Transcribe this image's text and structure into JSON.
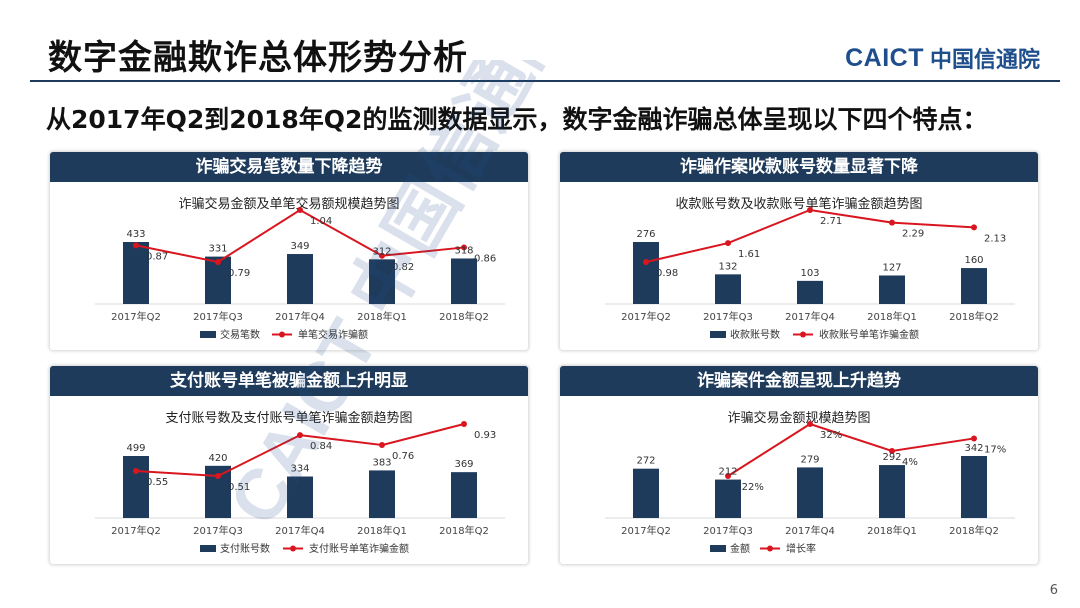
{
  "header": {
    "title": "数字金融欺诈总体形势分析",
    "logo_latin": "CAICT",
    "logo_cn": "中国信通院"
  },
  "subtitle": "从2017年Q2到2018年Q2的监测数据显示，数字金融诈骗总体呈现以下四个特点：",
  "watermark": "CAICT 中国信通院",
  "page_number": "6",
  "colors": {
    "bar": "#1f3b5c",
    "line": "#d9161f",
    "header": "#1f3b5c"
  },
  "panels": [
    {
      "header": "诈骗交易笔数量下降趋势"
    },
    {
      "header": "诈骗作案收款账号数量显著下降"
    },
    {
      "header": "支付账号单笔被骗金额上升明显"
    },
    {
      "header": "诈骗案件金额呈现上升趋势"
    }
  ],
  "chart_data": [
    {
      "type": "bar",
      "title": "诈骗交易金额及单笔交易额规模趋势图",
      "categories": [
        "2017年Q2",
        "2017年Q3",
        "2017年Q4",
        "2018年Q1",
        "2018年Q2"
      ],
      "series": [
        {
          "name": "交易笔数",
          "type": "bar",
          "values": [
            433,
            331,
            349,
            312,
            318
          ]
        },
        {
          "name": "单笔交易诈骗额",
          "type": "line",
          "values": [
            0.87,
            0.79,
            1.04,
            0.82,
            0.86
          ]
        }
      ],
      "legend": "bottom",
      "grid": false
    },
    {
      "type": "bar",
      "title": "收款账号数及收款账号单笔诈骗金额趋势图",
      "categories": [
        "2017年Q2",
        "2017年Q3",
        "2017年Q4",
        "2018年Q1",
        "2018年Q2"
      ],
      "series": [
        {
          "name": "收款账号数",
          "type": "bar",
          "values": [
            276,
            132,
            103,
            127,
            160
          ]
        },
        {
          "name": "收款账号单笔诈骗金额",
          "type": "line",
          "values": [
            0.98,
            1.61,
            2.71,
            2.29,
            2.13
          ]
        }
      ],
      "legend": "bottom",
      "grid": false
    },
    {
      "type": "bar",
      "title": "支付账号数及支付账号单笔诈骗金额趋势图",
      "categories": [
        "2017年Q2",
        "2017年Q3",
        "2017年Q4",
        "2018年Q1",
        "2018年Q2"
      ],
      "series": [
        {
          "name": "支付账号数",
          "type": "bar",
          "values": [
            499,
            420,
            334,
            383,
            369
          ]
        },
        {
          "name": "支付账号单笔诈骗金额",
          "type": "line",
          "values": [
            0.55,
            0.51,
            0.84,
            0.76,
            0.93
          ]
        }
      ],
      "legend": "bottom",
      "grid": false
    },
    {
      "type": "bar",
      "title": "诈骗交易金额规模趋势图",
      "categories": [
        "2017年Q2",
        "2017年Q3",
        "2017年Q4",
        "2018年Q1",
        "2018年Q2"
      ],
      "series": [
        {
          "name": "金额",
          "type": "bar",
          "values": [
            272,
            212,
            279,
            292,
            342
          ]
        },
        {
          "name": "增长率",
          "type": "line",
          "values": [
            null,
            -22,
            32,
            4,
            17
          ],
          "labels": [
            "",
            "-22%",
            "32%",
            "4%",
            "17%"
          ]
        }
      ],
      "legend": "bottom",
      "grid": false
    }
  ]
}
